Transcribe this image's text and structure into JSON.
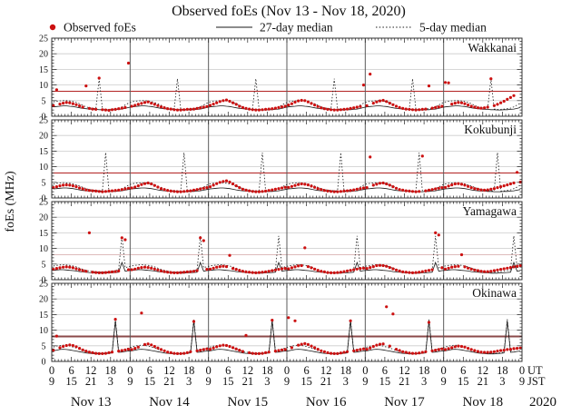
{
  "title": "Observed foEs (Nov 13 - Nov 18, 2020)",
  "legend": {
    "observed": "Observed foEs",
    "median27": "27-day median",
    "median5": "5-day median"
  },
  "colors": {
    "observed": "#cc1111",
    "median": "#1a1a1a",
    "gridline": "#cccccc",
    "day_boundary": "#5a5a5a",
    "frame": "#333333"
  },
  "y_axis": {
    "label": "foEs (MHz)",
    "min": 0,
    "max": 25,
    "major_ticks": [
      0,
      5,
      10,
      15,
      20,
      25
    ],
    "gridlines": [
      5,
      10,
      15,
      20
    ]
  },
  "x_axis": {
    "days": [
      "Nov 13",
      "Nov 14",
      "Nov 15",
      "Nov 16",
      "Nov 17",
      "Nov 18"
    ],
    "ut_ticks": [
      "0",
      "6",
      "12",
      "18"
    ],
    "jst_ticks": [
      "9",
      "15",
      "21",
      "3"
    ],
    "end_ut": "0",
    "end_jst": "9",
    "ut_label": "UT",
    "jst_label": "JST",
    "year": "2020"
  },
  "chart_data": {
    "type": "scatter",
    "x_unit": "hours UT from 00:00 Nov 13 2020, hourly samples",
    "ylim": [
      0,
      25
    ],
    "stations": [
      {
        "name": "Wakkanai",
        "threshold": 8,
        "threshold_color": "#b22222",
        "threshold_width": 1,
        "observed_hourly": [
          [
            3.4,
            8.5,
            3.9,
            4.2,
            4.4,
            4.3,
            4.0,
            3.7,
            3.3,
            2.9,
            9.7,
            2.5,
            2.3,
            2.2,
            12.2,
            2.1,
            2.0,
            1.9,
            2.1,
            2.2,
            2.4,
            2.6,
            2.8,
            17.0
          ],
          [
            3.2,
            3.5,
            3.8,
            4.1,
            4.4,
            4.6,
            4.2,
            3.8,
            3.4,
            3.0,
            2.7,
            2.4,
            2.3,
            2.1,
            2.0,
            2.0,
            2.1,
            2.2,
            2.2,
            2.3,
            2.5,
            2.7,
            2.9,
            3.1
          ],
          [
            3.5,
            3.9,
            4.3,
            4.7,
            5.0,
            5.2,
            4.8,
            4.3,
            3.8,
            3.2,
            2.8,
            2.5,
            2.3,
            2.1,
            2.0,
            2.0,
            2.1,
            2.2,
            2.3,
            2.4,
            2.6,
            2.8,
            3.0,
            3.2
          ],
          [
            3.6,
            4.0,
            4.5,
            4.9,
            5.1,
            5.0,
            4.6,
            4.1,
            3.6,
            3.1,
            2.7,
            2.4,
            2.2,
            2.1,
            2.0,
            2.0,
            2.1,
            2.2,
            2.3,
            2.5,
            2.7,
            2.9,
            3.1,
            10.0
          ],
          [
            3.4,
            13.5,
            4.2,
            4.6,
            4.9,
            5.1,
            4.7,
            4.2,
            3.7,
            3.2,
            2.8,
            2.5,
            2.3,
            2.2,
            2.1,
            2.0,
            2.1,
            2.2,
            2.3,
            9.7,
            2.6,
            2.8,
            3.0,
            3.2
          ],
          [
            10.8,
            10.7,
            3.9,
            4.2,
            4.4,
            4.3,
            4.0,
            3.6,
            3.2,
            2.9,
            2.7,
            2.6,
            2.7,
            2.9,
            12.0,
            3.4,
            3.8,
            4.3,
            4.8,
            5.4,
            6.0,
            6.6,
            null,
            null
          ]
        ],
        "median27_diurnal": [
          3.0,
          3.1,
          3.2,
          3.3,
          3.3,
          3.2,
          3.1,
          2.9,
          2.7,
          2.5,
          2.4,
          2.3,
          2.2,
          2.2,
          2.1,
          2.1,
          2.0,
          2.0,
          2.1,
          2.1,
          2.2,
          2.3,
          2.5,
          2.8
        ],
        "median5_diurnal": [
          4.6,
          4.8,
          4.9,
          5.0,
          5.0,
          4.9,
          4.7,
          4.4,
          4.0,
          3.5,
          3.0,
          2.7,
          2.5,
          2.4,
          12.0,
          2.3,
          2.2,
          2.2,
          2.3,
          2.4,
          2.6,
          3.0,
          3.6,
          4.2
        ]
      },
      {
        "name": "Kokubunji",
        "threshold": 8,
        "threshold_color": "#b22222",
        "threshold_width": 1,
        "observed_hourly": [
          [
            3.3,
            3.6,
            3.9,
            4.1,
            4.2,
            4.1,
            3.9,
            3.6,
            3.2,
            2.9,
            2.6,
            2.4,
            2.3,
            2.2,
            2.1,
            2.0,
            2.1,
            2.2,
            2.3,
            2.4,
            2.5,
            2.7,
            2.9,
            3.1
          ],
          [
            3.2,
            3.5,
            3.9,
            4.3,
            4.6,
            4.8,
            4.5,
            4.0,
            3.5,
            3.0,
            2.7,
            2.4,
            2.2,
            2.1,
            2.0,
            2.0,
            2.1,
            2.2,
            2.3,
            2.5,
            2.7,
            2.9,
            3.1,
            3.3
          ],
          [
            3.6,
            4.1,
            4.6,
            5.0,
            5.3,
            5.5,
            5.1,
            4.5,
            3.9,
            3.3,
            2.8,
            2.5,
            2.3,
            2.1,
            2.0,
            2.0,
            2.1,
            2.2,
            2.4,
            2.6,
            2.8,
            3.0,
            3.2,
            3.4
          ],
          [
            3.4,
            3.7,
            4.0,
            4.3,
            4.5,
            4.4,
            4.2,
            3.8,
            3.4,
            3.0,
            2.7,
            2.4,
            2.2,
            2.1,
            2.0,
            2.0,
            2.1,
            2.2,
            2.3,
            2.4,
            2.6,
            2.8,
            3.0,
            3.2
          ],
          [
            3.3,
            13.1,
            4.1,
            4.4,
            4.7,
            4.8,
            4.5,
            4.1,
            3.6,
            3.1,
            2.7,
            2.5,
            2.3,
            2.2,
            2.1,
            2.0,
            2.1,
            13.4,
            2.3,
            2.5,
            2.7,
            2.9,
            3.1,
            3.3
          ],
          [
            3.4,
            3.8,
            4.2,
            4.5,
            4.6,
            4.4,
            4.1,
            3.7,
            3.3,
            3.0,
            2.8,
            2.6,
            2.5,
            2.6,
            2.8,
            3.0,
            3.3,
            3.6,
            3.9,
            4.2,
            4.5,
            4.8,
            8.2,
            5.1
          ]
        ],
        "median27_diurnal": [
          2.9,
          3.0,
          3.1,
          3.2,
          3.2,
          3.1,
          3.0,
          2.8,
          2.6,
          2.4,
          2.3,
          2.2,
          2.2,
          2.1,
          2.1,
          2.0,
          2.0,
          2.0,
          2.1,
          2.1,
          2.2,
          2.3,
          2.5,
          2.7
        ],
        "median5_diurnal": [
          4.5,
          4.7,
          4.8,
          4.9,
          4.8,
          4.7,
          4.5,
          4.2,
          3.8,
          3.4,
          3.0,
          2.7,
          2.5,
          2.4,
          2.3,
          2.3,
          14.5,
          2.2,
          2.3,
          2.4,
          2.6,
          3.0,
          3.5,
          4.1
        ]
      },
      {
        "name": "Yamagawa",
        "threshold": 8,
        "threshold_color": "#debbbb",
        "threshold_width": 1,
        "observed_hourly": [
          [
            3.3,
            3.6,
            3.8,
            4.0,
            4.1,
            4.0,
            3.8,
            3.5,
            3.2,
            2.9,
            2.7,
            15.0,
            2.4,
            2.3,
            2.2,
            2.2,
            2.3,
            2.4,
            2.5,
            2.6,
            2.8,
            13.4,
            12.8,
            3.2
          ],
          [
            3.2,
            3.4,
            3.7,
            3.9,
            4.0,
            3.9,
            3.7,
            3.4,
            3.1,
            2.8,
            2.6,
            2.4,
            2.3,
            2.2,
            2.2,
            2.3,
            2.4,
            2.5,
            2.6,
            2.7,
            2.9,
            13.4,
            12.5,
            3.3
          ],
          [
            3.4,
            3.7,
            4.0,
            4.2,
            4.3,
            4.2,
            7.8,
            3.6,
            3.3,
            3.0,
            2.7,
            2.5,
            2.4,
            2.3,
            2.2,
            2.3,
            2.4,
            2.5,
            2.7,
            2.9,
            3.1,
            3.3,
            3.5,
            3.6
          ],
          [
            3.5,
            3.8,
            4.1,
            4.4,
            4.5,
            10.2,
            4.2,
            3.8,
            3.4,
            3.0,
            2.7,
            2.5,
            2.3,
            2.2,
            2.2,
            2.3,
            2.4,
            2.6,
            2.8,
            3.0,
            3.2,
            3.4,
            3.6,
            3.7
          ],
          [
            3.6,
            3.9,
            4.2,
            4.5,
            4.6,
            4.5,
            4.3,
            3.9,
            3.5,
            3.1,
            2.8,
            2.5,
            2.4,
            2.3,
            2.2,
            2.3,
            2.4,
            2.6,
            2.8,
            3.0,
            3.2,
            15.0,
            14.3,
            3.8
          ],
          [
            3.4,
            3.7,
            4.0,
            4.2,
            4.3,
            8.0,
            4.1,
            3.7,
            3.4,
            3.1,
            2.9,
            2.7,
            2.6,
            2.6,
            2.7,
            2.9,
            3.1,
            3.3,
            3.5,
            3.7,
            3.9,
            4.1,
            4.3,
            4.5
          ]
        ],
        "median27_diurnal": [
          3.0,
          3.1,
          3.2,
          3.2,
          3.1,
          3.0,
          2.9,
          2.8,
          2.6,
          2.5,
          2.4,
          2.3,
          2.2,
          2.2,
          2.1,
          2.1,
          2.1,
          2.2,
          2.2,
          2.3,
          2.4,
          5.5,
          2.7,
          2.9
        ],
        "median5_diurnal": [
          4.4,
          4.6,
          4.7,
          4.8,
          4.7,
          4.6,
          4.4,
          4.1,
          3.7,
          3.3,
          3.0,
          2.8,
          2.6,
          2.5,
          2.4,
          2.4,
          2.5,
          2.6,
          2.7,
          2.9,
          3.2,
          14.0,
          3.8,
          4.2
        ]
      },
      {
        "name": "Okinawa",
        "threshold": 8,
        "threshold_color": "#8b4a4a",
        "threshold_width": 2,
        "observed_hourly": [
          [
            3.6,
            8.1,
            4.4,
            4.8,
            5.1,
            5.3,
            5.1,
            4.7,
            4.2,
            3.7,
            3.3,
            3.0,
            2.8,
            2.6,
            2.5,
            2.5,
            2.6,
            2.8,
            3.0,
            13.5,
            3.3,
            3.5,
            3.7,
            3.9
          ],
          [
            3.8,
            4.2,
            4.6,
            15.5,
            5.4,
            5.6,
            5.3,
            4.8,
            4.3,
            3.8,
            3.4,
            3.0,
            2.8,
            2.6,
            2.5,
            2.5,
            2.6,
            2.8,
            3.1,
            12.8,
            3.4,
            3.6,
            3.8,
            4.0
          ],
          [
            3.9,
            4.3,
            4.7,
            5.0,
            5.2,
            5.1,
            4.8,
            4.4,
            4.0,
            3.6,
            3.2,
            8.3,
            2.8,
            2.6,
            2.5,
            2.5,
            2.6,
            2.8,
            3.0,
            13.2,
            3.3,
            3.5,
            3.7,
            3.8
          ],
          [
            14.0,
            4.4,
            13.0,
            5.2,
            5.5,
            5.7,
            5.4,
            4.9,
            4.4,
            3.9,
            3.4,
            3.1,
            2.8,
            2.6,
            2.5,
            2.5,
            2.7,
            2.9,
            3.1,
            13.0,
            3.4,
            3.6,
            3.8,
            4.0
          ],
          [
            3.9,
            4.3,
            4.8,
            5.2,
            5.5,
            5.6,
            17.5,
            4.9,
            15.2,
            3.9,
            3.5,
            3.1,
            2.9,
            2.7,
            2.6,
            2.6,
            2.7,
            2.9,
            3.1,
            12.5,
            3.4,
            3.6,
            3.8,
            4.0
          ],
          [
            3.8,
            4.1,
            4.4,
            4.7,
            4.9,
            4.8,
            4.6,
            4.2,
            3.8,
            3.5,
            3.2,
            3.0,
            2.9,
            2.9,
            3.0,
            3.1,
            3.3,
            3.5,
            3.6,
            3.8,
            3.9,
            4.1,
            4.2,
            4.3
          ]
        ],
        "median27_diurnal": [
          3.4,
          3.6,
          3.8,
          3.9,
          3.8,
          3.7,
          3.5,
          3.3,
          3.1,
          2.9,
          2.7,
          2.6,
          2.5,
          2.4,
          2.4,
          2.4,
          2.5,
          2.6,
          2.7,
          13.0,
          2.9,
          3.0,
          3.2,
          3.3
        ],
        "median5_diurnal": [
          4.6,
          4.9,
          5.1,
          5.2,
          5.1,
          4.9,
          4.6,
          4.3,
          3.9,
          3.5,
          3.2,
          3.0,
          2.8,
          2.7,
          2.6,
          2.6,
          2.7,
          2.8,
          3.0,
          13.5,
          3.4,
          3.7,
          4.0,
          4.3
        ]
      }
    ]
  }
}
